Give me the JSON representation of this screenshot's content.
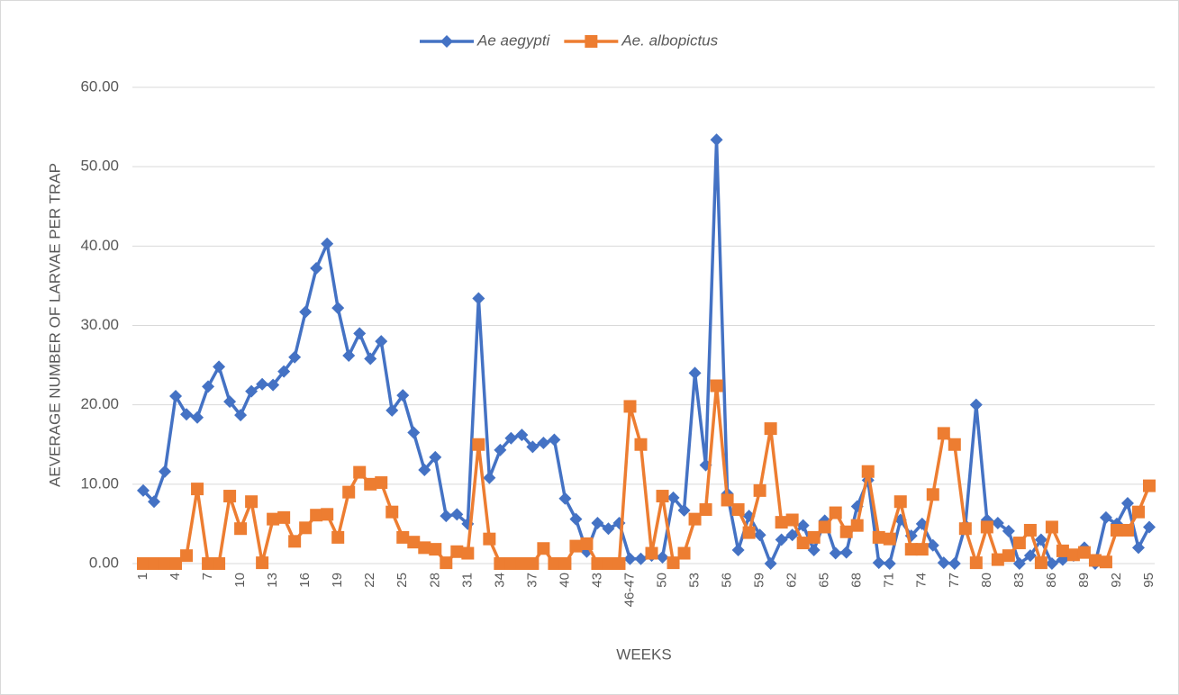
{
  "chart_data": {
    "type": "line",
    "x_label": "WEEKS",
    "y_label": "AEVERAGE NUMBER OF LARVAE PER TRAP",
    "categories": [
      "1",
      null,
      null,
      "4",
      null,
      null,
      "7",
      null,
      null,
      "10",
      null,
      null,
      "13",
      null,
      null,
      "16",
      null,
      null,
      "19",
      null,
      null,
      "22",
      null,
      null,
      "25",
      null,
      null,
      "28",
      null,
      null,
      "31",
      null,
      null,
      "34",
      null,
      null,
      "37",
      null,
      null,
      "40",
      null,
      null,
      "43",
      null,
      null,
      "46-47",
      null,
      null,
      "50",
      null,
      null,
      "53",
      null,
      null,
      "56",
      null,
      null,
      "59",
      null,
      null,
      "62",
      null,
      null,
      "65",
      null,
      null,
      "68",
      null,
      null,
      "71",
      null,
      null,
      "74",
      null,
      null,
      "77",
      null,
      null,
      "80",
      null,
      null,
      "83",
      null,
      null,
      "86",
      null,
      null,
      "89",
      null,
      null,
      "92",
      null,
      null,
      "95"
    ],
    "series": [
      {
        "name": "Ae aegypti",
        "color": "#4472c4",
        "marker": "diamond",
        "values": [
          9.2,
          7.8,
          11.6,
          21.1,
          18.8,
          18.4,
          22.3,
          24.8,
          20.4,
          18.7,
          21.7,
          22.6,
          22.5,
          24.2,
          26.0,
          31.7,
          37.2,
          40.3,
          32.2,
          26.2,
          29.0,
          25.8,
          28.0,
          19.3,
          21.2,
          16.5,
          11.8,
          13.4,
          6.0,
          6.2,
          5.0,
          33.4,
          10.8,
          14.3,
          15.8,
          16.2,
          14.7,
          15.2,
          15.6,
          8.2,
          5.6,
          1.5,
          5.1,
          4.4,
          5.1,
          0.6,
          0.6,
          1.0,
          0.8,
          8.3,
          6.7,
          24.0,
          12.4,
          53.4,
          8.8,
          1.7,
          6.0,
          3.6,
          0.0,
          3.0,
          3.6,
          4.8,
          1.7,
          5.4,
          1.3,
          1.4,
          7.2,
          10.5,
          0.1,
          0.0,
          5.5,
          3.5,
          5.0,
          2.3,
          0.1,
          0.0,
          4.8,
          20.0,
          5.5,
          5.1,
          4.1,
          0.0,
          1.0,
          3.0,
          0.0,
          0.5,
          1.0,
          2.0,
          0.0,
          5.8,
          5.0,
          7.6,
          2.0,
          4.6
        ]
      },
      {
        "name": "Ae. albopictus",
        "color": "#ed7d31",
        "marker": "square",
        "values": [
          0,
          0,
          0,
          0,
          1.0,
          9.4,
          0,
          0,
          8.5,
          4.4,
          7.8,
          0.1,
          5.6,
          5.8,
          2.8,
          4.5,
          6.1,
          6.2,
          3.3,
          9.0,
          11.5,
          10.0,
          10.2,
          6.5,
          3.3,
          2.7,
          2.0,
          1.8,
          0.1,
          1.5,
          1.3,
          15.0,
          3.1,
          0,
          0,
          0,
          0,
          1.9,
          0,
          0,
          2.2,
          2.5,
          0,
          0,
          0,
          19.8,
          15.0,
          1.3,
          8.5,
          0.1,
          1.3,
          5.6,
          6.8,
          22.4,
          8.0,
          6.8,
          3.9,
          9.2,
          17.0,
          5.2,
          5.5,
          2.6,
          3.3,
          4.6,
          6.4,
          4.0,
          4.8,
          11.6,
          3.3,
          3.1,
          7.8,
          1.8,
          1.8,
          8.7,
          16.4,
          15.0,
          4.4,
          0.1,
          4.6,
          0.5,
          1.0,
          2.6,
          4.2,
          0.1,
          4.6,
          1.6,
          1.1,
          1.4,
          0.4,
          0.2,
          4.2,
          4.2,
          6.5,
          9.8
        ]
      }
    ],
    "ylim": [
      0,
      60
    ],
    "yticks": [
      {
        "value": 0,
        "label": "0.00"
      },
      {
        "value": 10,
        "label": "10.00"
      },
      {
        "value": 20,
        "label": "20.00"
      },
      {
        "value": 30,
        "label": "30.00"
      },
      {
        "value": 40,
        "label": "40.00"
      },
      {
        "value": 50,
        "label": "50.00"
      },
      {
        "value": 60,
        "label": "60.00"
      }
    ],
    "grid": true,
    "legend": "top"
  }
}
